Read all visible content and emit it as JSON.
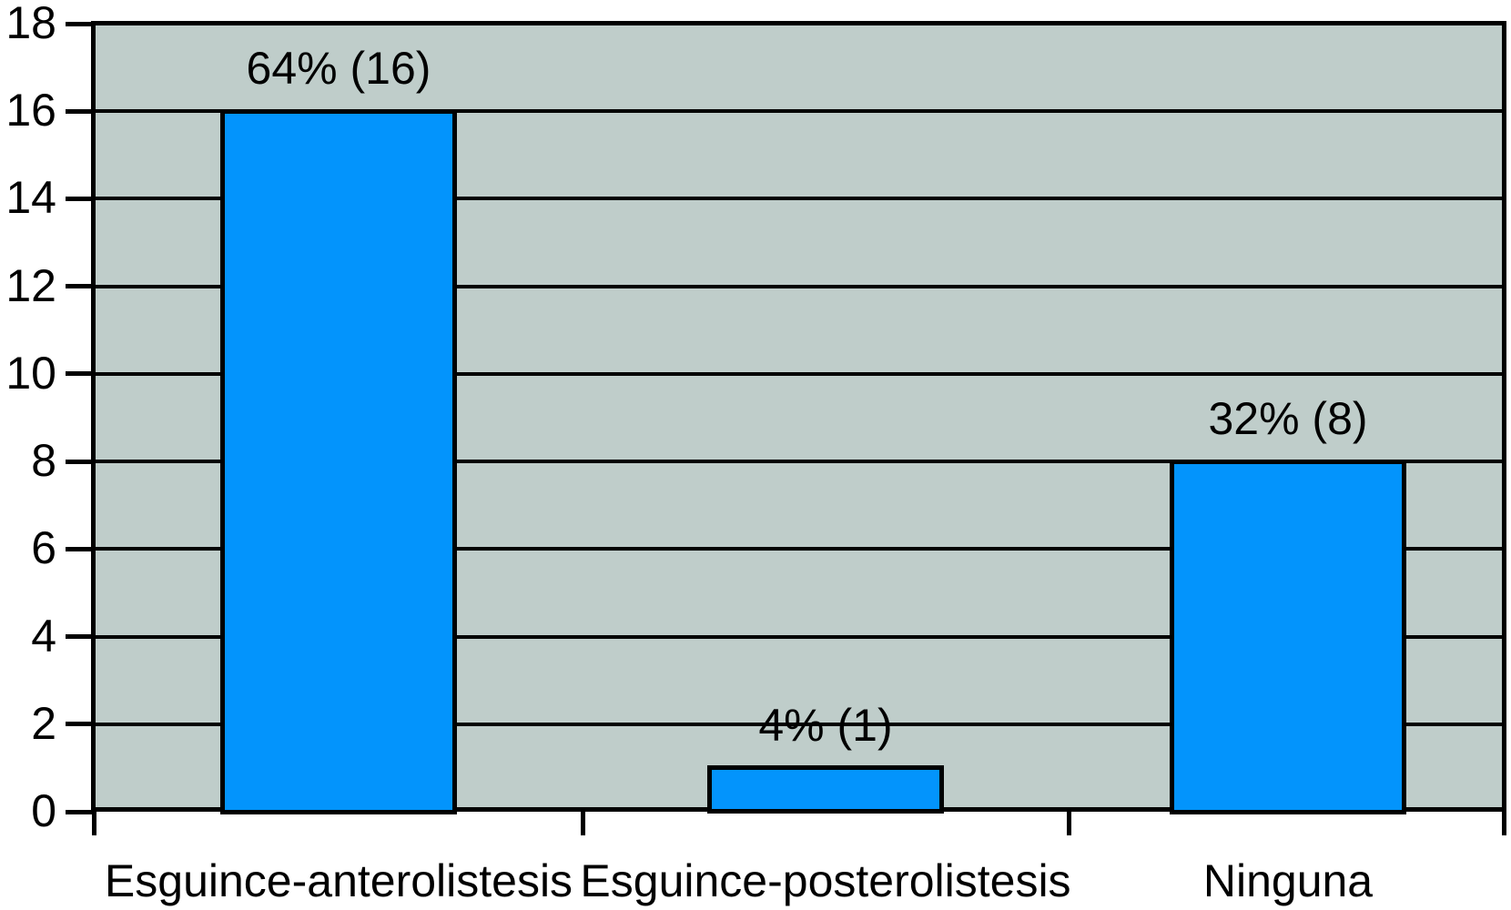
{
  "chart_data": {
    "type": "bar",
    "title": "",
    "xlabel": "",
    "ylabel": "",
    "categories": [
      "Esguince-anterolistesis",
      "Esguince-posterolistesis",
      "Ninguna"
    ],
    "values": [
      16,
      1,
      8
    ],
    "bar_labels": [
      "64% (16)",
      "4% (1)",
      "32% (8)"
    ],
    "percentages": [
      64,
      4,
      32
    ],
    "counts": [
      16,
      1,
      8
    ],
    "ylim": [
      0,
      18
    ],
    "yticks": [
      0,
      2,
      4,
      6,
      8,
      10,
      12,
      14,
      16,
      18
    ],
    "ytick_step": 2,
    "grid": true,
    "legend": false,
    "layout_hints": {
      "gridlines_horizontal_only": true,
      "x_ticks_at_category_boundaries": true,
      "bars_outlined": true
    },
    "colors": {
      "bar_fill": "#0394fc",
      "bar_border": "#000000",
      "plot_background": "#bfcdca",
      "gridline": "#000000",
      "axis": "#000000",
      "text": "#000000",
      "page_background": "#ffffff"
    }
  }
}
